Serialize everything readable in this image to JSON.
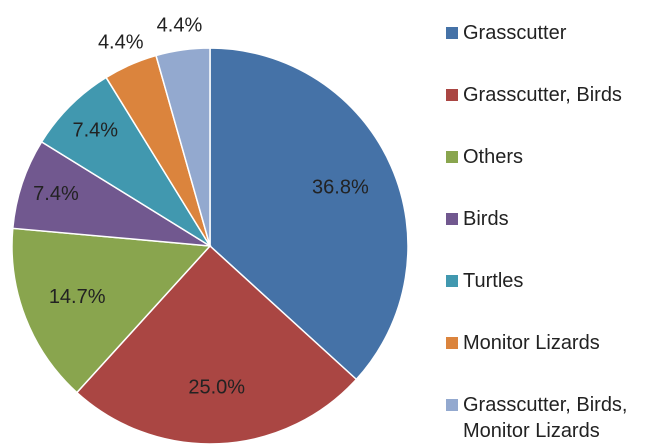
{
  "chart_data": {
    "type": "pie",
    "labels": [
      "Grasscutter",
      "Grasscutter, Birds",
      "Others",
      "Birds",
      "Turtles",
      "Monitor Lizards",
      "Grasscutter, Birds, Monitor Lizards"
    ],
    "values": [
      36.8,
      25.0,
      14.7,
      7.4,
      7.4,
      4.4,
      4.4
    ],
    "value_labels": [
      "36.8%",
      "25.0%",
      "14.7%",
      "7.4%",
      "7.4%",
      "4.4%",
      "4.4%"
    ],
    "colors": [
      "#4572a7",
      "#aa4643",
      "#89a54e",
      "#71588f",
      "#4198af",
      "#db843d",
      "#93a9cf"
    ],
    "legend": "right"
  }
}
